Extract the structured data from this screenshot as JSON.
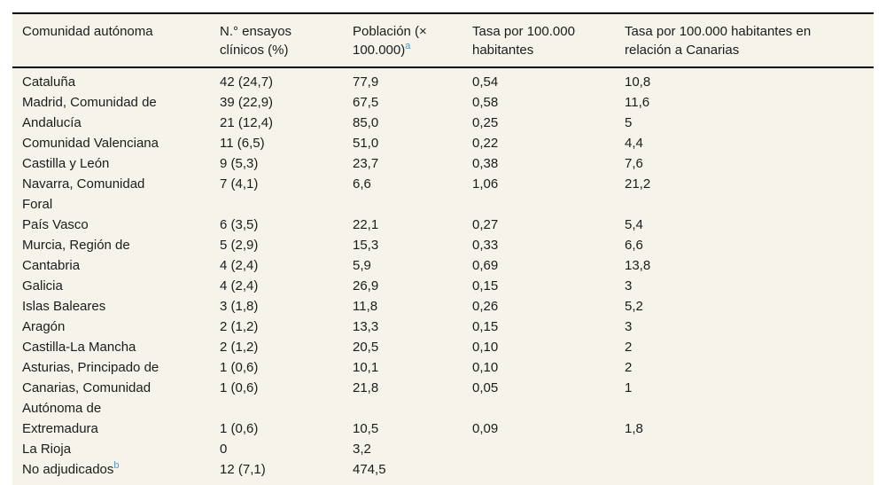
{
  "table": {
    "columns": [
      {
        "label": "Comunidad autónoma",
        "sup": ""
      },
      {
        "label": "N.° ensayos\nclínicos (%)",
        "sup": ""
      },
      {
        "label": "Población (×\n100.000)",
        "sup": "a"
      },
      {
        "label": "Tasa por 100.000\nhabitantes",
        "sup": ""
      },
      {
        "label": "Tasa por 100.000 habitantes en\nrelación a Canarias",
        "sup": ""
      }
    ],
    "rows": [
      {
        "name": "Cataluña",
        "sup": "",
        "ensayos": "42 (24,7)",
        "poblacion": "77,9",
        "tasa": "0,54",
        "tasa_canarias": "10,8"
      },
      {
        "name": "Madrid, Comunidad de",
        "sup": "",
        "ensayos": "39 (22,9)",
        "poblacion": "67,5",
        "tasa": "0,58",
        "tasa_canarias": "11,6"
      },
      {
        "name": "Andalucía",
        "sup": "",
        "ensayos": "21 (12,4)",
        "poblacion": "85,0",
        "tasa": "0,25",
        "tasa_canarias": "5"
      },
      {
        "name": "Comunidad Valenciana",
        "sup": "",
        "ensayos": "11 (6,5)",
        "poblacion": "51,0",
        "tasa": "0,22",
        "tasa_canarias": "4,4"
      },
      {
        "name": "Castilla y León",
        "sup": "",
        "ensayos": "9 (5,3)",
        "poblacion": "23,7",
        "tasa": "0,38",
        "tasa_canarias": "7,6"
      },
      {
        "name": "Navarra, Comunidad\nForal",
        "sup": "",
        "ensayos": "7 (4,1)",
        "poblacion": "6,6",
        "tasa": "1,06",
        "tasa_canarias": "21,2"
      },
      {
        "name": "País Vasco",
        "sup": "",
        "ensayos": "6 (3,5)",
        "poblacion": "22,1",
        "tasa": "0,27",
        "tasa_canarias": "5,4"
      },
      {
        "name": "Murcia, Región de",
        "sup": "",
        "ensayos": "5 (2,9)",
        "poblacion": "15,3",
        "tasa": "0,33",
        "tasa_canarias": "6,6"
      },
      {
        "name": "Cantabria",
        "sup": "",
        "ensayos": "4 (2,4)",
        "poblacion": "5,9",
        "tasa": "0,69",
        "tasa_canarias": "13,8"
      },
      {
        "name": "Galicia",
        "sup": "",
        "ensayos": "4 (2,4)",
        "poblacion": "26,9",
        "tasa": "0,15",
        "tasa_canarias": "3"
      },
      {
        "name": "Islas Baleares",
        "sup": "",
        "ensayos": "3 (1,8)",
        "poblacion": "11,8",
        "tasa": "0,26",
        "tasa_canarias": "5,2"
      },
      {
        "name": "Aragón",
        "sup": "",
        "ensayos": "2 (1,2)",
        "poblacion": "13,3",
        "tasa": "0,15",
        "tasa_canarias": "3"
      },
      {
        "name": "Castilla-La Mancha",
        "sup": "",
        "ensayos": "2 (1,2)",
        "poblacion": "20,5",
        "tasa": "0,10",
        "tasa_canarias": "2"
      },
      {
        "name": "Asturias, Principado de",
        "sup": "",
        "ensayos": "1 (0,6)",
        "poblacion": "10,1",
        "tasa": "0,10",
        "tasa_canarias": "2"
      },
      {
        "name": "Canarias, Comunidad\nAutónoma de",
        "sup": "",
        "ensayos": "1 (0,6)",
        "poblacion": "21,8",
        "tasa": "0,05",
        "tasa_canarias": "1"
      },
      {
        "name": "Extremadura",
        "sup": "",
        "ensayos": "1 (0,6)",
        "poblacion": "10,5",
        "tasa": "0,09",
        "tasa_canarias": "1,8"
      },
      {
        "name": "La Rioja",
        "sup": "",
        "ensayos": "0",
        "poblacion": "3,2",
        "tasa": "",
        "tasa_canarias": ""
      },
      {
        "name": "No adjudicados",
        "sup": "b",
        "ensayos": "12 (7,1)",
        "poblacion": "474,5",
        "tasa": "",
        "tasa_canarias": ""
      }
    ]
  },
  "colors": {
    "table_background": "#f6f3ea",
    "rule": "#000000",
    "text": "#1c1c1c",
    "footnote_link": "#3d9fd3"
  }
}
